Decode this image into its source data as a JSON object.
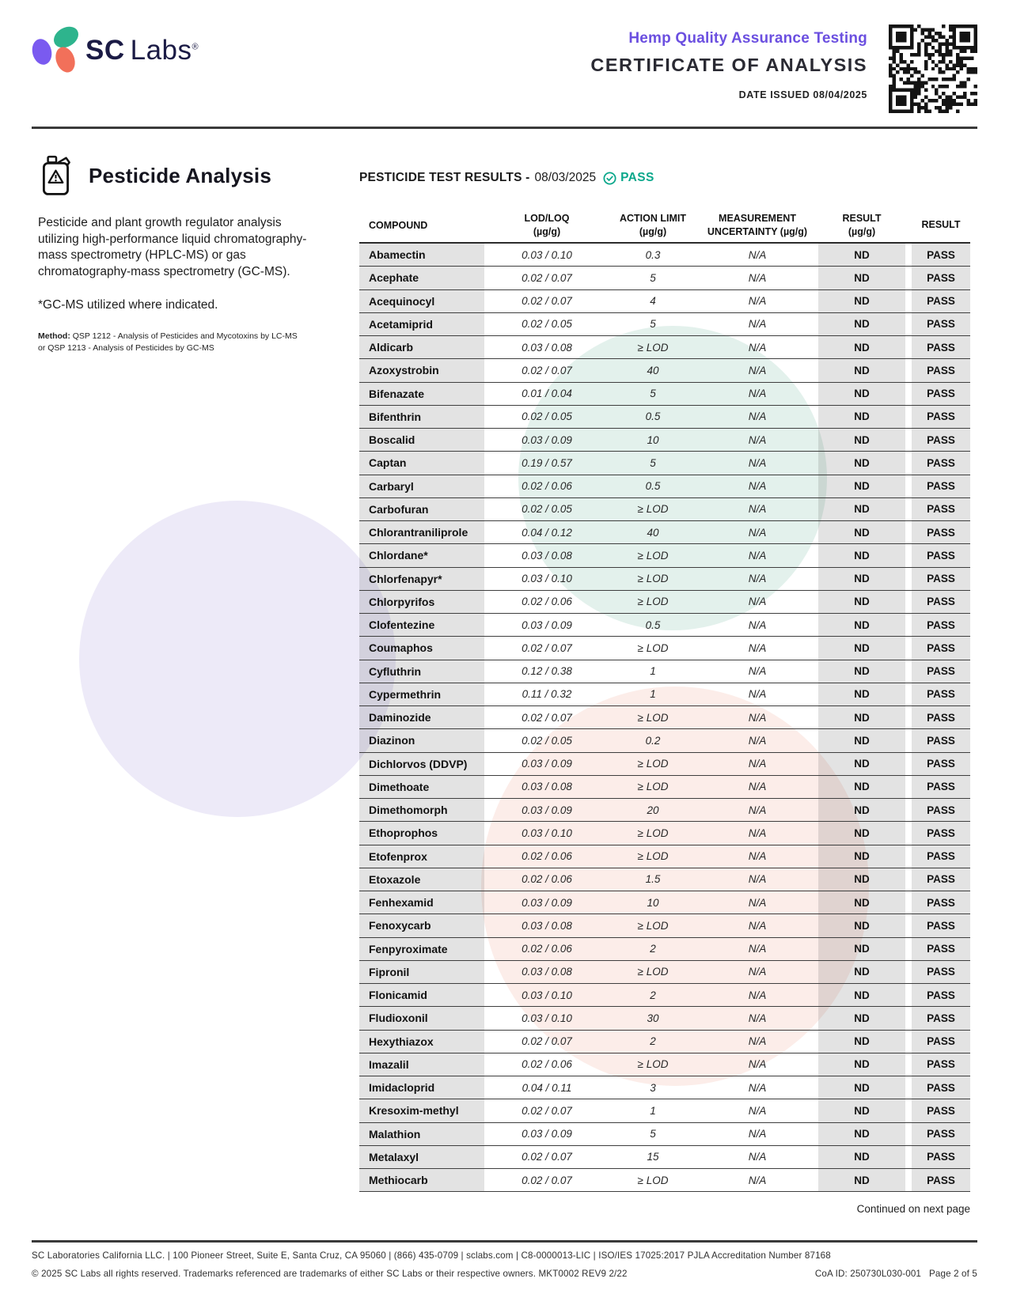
{
  "header": {
    "logo_sc": "SC",
    "logo_labs": "Labs",
    "logo_reg": "®",
    "program": "Hemp Quality Assurance Testing",
    "title": "CERTIFICATE OF ANALYSIS",
    "date_issued": "DATE ISSUED 08/04/2025"
  },
  "panel": {
    "title": "Pesticide Analysis",
    "description": "Pesticide and plant growth regulator analysis utilizing high-performance liquid chromatography-mass spectrometry (HPLC-MS) or gas chromatography-mass spectrometry (GC-MS).",
    "gcms_note": "*GC-MS utilized where indicated.",
    "method_label": "Method:",
    "method_text": " QSP 1212 - Analysis of Pesticides and Mycotoxins by LC-MS or QSP 1213 - Analysis of Pesticides by GC-MS"
  },
  "results": {
    "heading": "PESTICIDE TEST RESULTS -",
    "date": "08/03/2025",
    "status": "PASS",
    "columns": [
      {
        "line1": "COMPOUND",
        "line2": ""
      },
      {
        "line1": "LOD/LOQ",
        "line2": "(µg/g)"
      },
      {
        "line1": "ACTION LIMIT",
        "line2": "(µg/g)"
      },
      {
        "line1": "MEASUREMENT",
        "line2": "UNCERTAINTY (µg/g)"
      },
      {
        "line1": "RESULT",
        "line2": "(µg/g)"
      },
      {
        "line1": "RESULT",
        "line2": ""
      }
    ],
    "rows": [
      {
        "compound": "Abamectin",
        "lod_loq": "0.03 / 0.10",
        "action_limit": "0.3",
        "uncertainty": "N/A",
        "result": "ND",
        "status": "PASS"
      },
      {
        "compound": "Acephate",
        "lod_loq": "0.02 / 0.07",
        "action_limit": "5",
        "uncertainty": "N/A",
        "result": "ND",
        "status": "PASS"
      },
      {
        "compound": "Acequinocyl",
        "lod_loq": "0.02 / 0.07",
        "action_limit": "4",
        "uncertainty": "N/A",
        "result": "ND",
        "status": "PASS"
      },
      {
        "compound": "Acetamiprid",
        "lod_loq": "0.02 / 0.05",
        "action_limit": "5",
        "uncertainty": "N/A",
        "result": "ND",
        "status": "PASS"
      },
      {
        "compound": "Aldicarb",
        "lod_loq": "0.03 / 0.08",
        "action_limit": "≥ LOD",
        "uncertainty": "N/A",
        "result": "ND",
        "status": "PASS"
      },
      {
        "compound": "Azoxystrobin",
        "lod_loq": "0.02 / 0.07",
        "action_limit": "40",
        "uncertainty": "N/A",
        "result": "ND",
        "status": "PASS"
      },
      {
        "compound": "Bifenazate",
        "lod_loq": "0.01 / 0.04",
        "action_limit": "5",
        "uncertainty": "N/A",
        "result": "ND",
        "status": "PASS"
      },
      {
        "compound": "Bifenthrin",
        "lod_loq": "0.02 / 0.05",
        "action_limit": "0.5",
        "uncertainty": "N/A",
        "result": "ND",
        "status": "PASS"
      },
      {
        "compound": "Boscalid",
        "lod_loq": "0.03 / 0.09",
        "action_limit": "10",
        "uncertainty": "N/A",
        "result": "ND",
        "status": "PASS"
      },
      {
        "compound": "Captan",
        "lod_loq": "0.19 / 0.57",
        "action_limit": "5",
        "uncertainty": "N/A",
        "result": "ND",
        "status": "PASS"
      },
      {
        "compound": "Carbaryl",
        "lod_loq": "0.02 / 0.06",
        "action_limit": "0.5",
        "uncertainty": "N/A",
        "result": "ND",
        "status": "PASS"
      },
      {
        "compound": "Carbofuran",
        "lod_loq": "0.02 / 0.05",
        "action_limit": "≥ LOD",
        "uncertainty": "N/A",
        "result": "ND",
        "status": "PASS"
      },
      {
        "compound": "Chlorantraniliprole",
        "lod_loq": "0.04 / 0.12",
        "action_limit": "40",
        "uncertainty": "N/A",
        "result": "ND",
        "status": "PASS"
      },
      {
        "compound": "Chlordane*",
        "lod_loq": "0.03 / 0.08",
        "action_limit": "≥ LOD",
        "uncertainty": "N/A",
        "result": "ND",
        "status": "PASS"
      },
      {
        "compound": "Chlorfenapyr*",
        "lod_loq": "0.03 / 0.10",
        "action_limit": "≥ LOD",
        "uncertainty": "N/A",
        "result": "ND",
        "status": "PASS"
      },
      {
        "compound": "Chlorpyrifos",
        "lod_loq": "0.02 / 0.06",
        "action_limit": "≥ LOD",
        "uncertainty": "N/A",
        "result": "ND",
        "status": "PASS"
      },
      {
        "compound": "Clofentezine",
        "lod_loq": "0.03 / 0.09",
        "action_limit": "0.5",
        "uncertainty": "N/A",
        "result": "ND",
        "status": "PASS"
      },
      {
        "compound": "Coumaphos",
        "lod_loq": "0.02 / 0.07",
        "action_limit": "≥ LOD",
        "uncertainty": "N/A",
        "result": "ND",
        "status": "PASS"
      },
      {
        "compound": "Cyfluthrin",
        "lod_loq": "0.12 / 0.38",
        "action_limit": "1",
        "uncertainty": "N/A",
        "result": "ND",
        "status": "PASS"
      },
      {
        "compound": "Cypermethrin",
        "lod_loq": "0.11 / 0.32",
        "action_limit": "1",
        "uncertainty": "N/A",
        "result": "ND",
        "status": "PASS"
      },
      {
        "compound": "Daminozide",
        "lod_loq": "0.02 / 0.07",
        "action_limit": "≥ LOD",
        "uncertainty": "N/A",
        "result": "ND",
        "status": "PASS"
      },
      {
        "compound": "Diazinon",
        "lod_loq": "0.02 / 0.05",
        "action_limit": "0.2",
        "uncertainty": "N/A",
        "result": "ND",
        "status": "PASS"
      },
      {
        "compound": "Dichlorvos (DDVP)",
        "lod_loq": "0.03 / 0.09",
        "action_limit": "≥ LOD",
        "uncertainty": "N/A",
        "result": "ND",
        "status": "PASS"
      },
      {
        "compound": "Dimethoate",
        "lod_loq": "0.03 / 0.08",
        "action_limit": "≥ LOD",
        "uncertainty": "N/A",
        "result": "ND",
        "status": "PASS"
      },
      {
        "compound": "Dimethomorph",
        "lod_loq": "0.03 / 0.09",
        "action_limit": "20",
        "uncertainty": "N/A",
        "result": "ND",
        "status": "PASS"
      },
      {
        "compound": "Ethoprophos",
        "lod_loq": "0.03 / 0.10",
        "action_limit": "≥ LOD",
        "uncertainty": "N/A",
        "result": "ND",
        "status": "PASS"
      },
      {
        "compound": "Etofenprox",
        "lod_loq": "0.02 / 0.06",
        "action_limit": "≥ LOD",
        "uncertainty": "N/A",
        "result": "ND",
        "status": "PASS"
      },
      {
        "compound": "Etoxazole",
        "lod_loq": "0.02 / 0.06",
        "action_limit": "1.5",
        "uncertainty": "N/A",
        "result": "ND",
        "status": "PASS"
      },
      {
        "compound": "Fenhexamid",
        "lod_loq": "0.03 / 0.09",
        "action_limit": "10",
        "uncertainty": "N/A",
        "result": "ND",
        "status": "PASS"
      },
      {
        "compound": "Fenoxycarb",
        "lod_loq": "0.03 / 0.08",
        "action_limit": "≥ LOD",
        "uncertainty": "N/A",
        "result": "ND",
        "status": "PASS"
      },
      {
        "compound": "Fenpyroximate",
        "lod_loq": "0.02 / 0.06",
        "action_limit": "2",
        "uncertainty": "N/A",
        "result": "ND",
        "status": "PASS"
      },
      {
        "compound": "Fipronil",
        "lod_loq": "0.03 / 0.08",
        "action_limit": "≥ LOD",
        "uncertainty": "N/A",
        "result": "ND",
        "status": "PASS"
      },
      {
        "compound": "Flonicamid",
        "lod_loq": "0.03 / 0.10",
        "action_limit": "2",
        "uncertainty": "N/A",
        "result": "ND",
        "status": "PASS"
      },
      {
        "compound": "Fludioxonil",
        "lod_loq": "0.03 / 0.10",
        "action_limit": "30",
        "uncertainty": "N/A",
        "result": "ND",
        "status": "PASS"
      },
      {
        "compound": "Hexythiazox",
        "lod_loq": "0.02 / 0.07",
        "action_limit": "2",
        "uncertainty": "N/A",
        "result": "ND",
        "status": "PASS"
      },
      {
        "compound": "Imazalil",
        "lod_loq": "0.02 / 0.06",
        "action_limit": "≥ LOD",
        "uncertainty": "N/A",
        "result": "ND",
        "status": "PASS"
      },
      {
        "compound": "Imidacloprid",
        "lod_loq": "0.04 / 0.11",
        "action_limit": "3",
        "uncertainty": "N/A",
        "result": "ND",
        "status": "PASS"
      },
      {
        "compound": "Kresoxim-methyl",
        "lod_loq": "0.02 / 0.07",
        "action_limit": "1",
        "uncertainty": "N/A",
        "result": "ND",
        "status": "PASS"
      },
      {
        "compound": "Malathion",
        "lod_loq": "0.03 / 0.09",
        "action_limit": "5",
        "uncertainty": "N/A",
        "result": "ND",
        "status": "PASS"
      },
      {
        "compound": "Metalaxyl",
        "lod_loq": "0.02 / 0.07",
        "action_limit": "15",
        "uncertainty": "N/A",
        "result": "ND",
        "status": "PASS"
      },
      {
        "compound": "Methiocarb",
        "lod_loq": "0.02 / 0.07",
        "action_limit": "≥ LOD",
        "uncertainty": "N/A",
        "result": "ND",
        "status": "PASS"
      }
    ]
  },
  "continued": "Continued on next page",
  "footer": {
    "line1": "SC Laboratories California LLC. | 100 Pioneer Street, Suite E, Santa Cruz, CA 95060 | (866) 435-0709 | sclabs.com | C8-0000013-LIC | ISO/IES 17025:2017 PJLA Accreditation Number 87168",
    "line2_left": "© 2025 SC Labs all rights reserved. Trademarks referenced are trademarks of either SC Labs or their respective owners. MKT0002 REV9 2/22",
    "coa_id": "CoA ID: 250730L030-001",
    "page": "Page 2 of 5"
  },
  "colors": {
    "accent_purple": "#6b4fe0",
    "pass_teal": "#0aa78b",
    "navy_text": "#1b1b45",
    "petal_teal": "#2eb48d",
    "petal_purple": "#7a5af0",
    "petal_coral": "#f2705a",
    "row_gray": "#e4e4e4",
    "wm_purple": "#edeaf8",
    "wm_teal": "#e3f1ec",
    "wm_pink": "#fcede9"
  }
}
